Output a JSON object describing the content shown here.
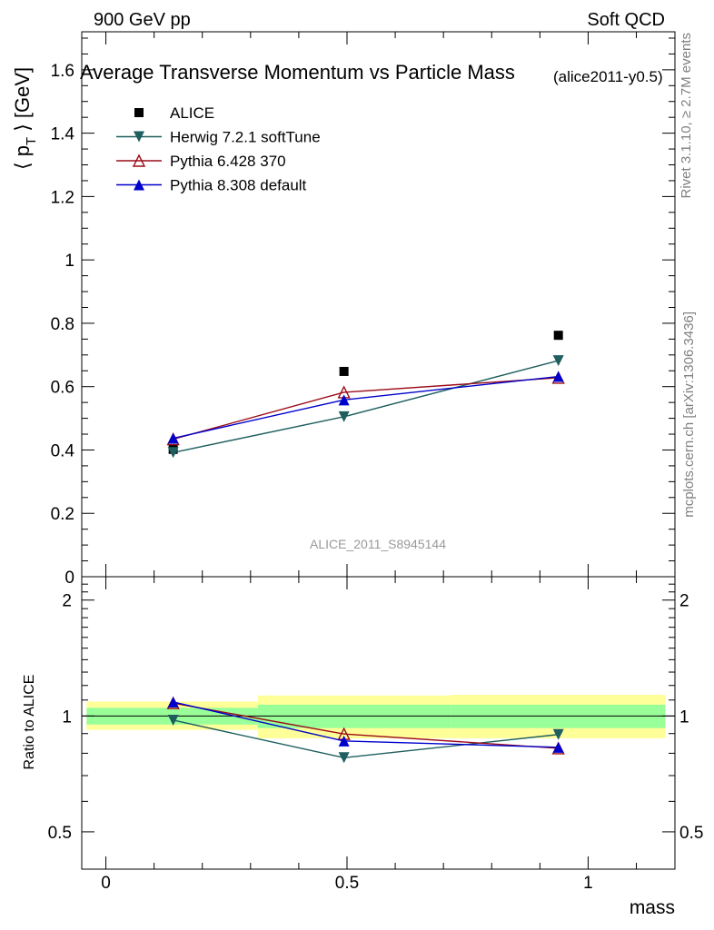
{
  "header": {
    "left": "900 GeV pp",
    "right": "Soft QCD"
  },
  "side_labels": {
    "rivet": "Rivet 3.1.10, ≥ 2.7M events",
    "mcplots": "mcplots.cern.ch [arXiv:1306.3436]"
  },
  "colors": {
    "data": "#000000",
    "herwig": "#1e5e5e",
    "pythia6": "#9b0d1a",
    "pythia8": "#0000cc",
    "band_inner": "#99ff99",
    "band_outer": "#ffff99",
    "watermark": "#999999"
  },
  "chart_data": [
    {
      "type": "line",
      "panel": "main",
      "title": "Average Transverse Momentum vs Particle Mass",
      "title_tag": "(alice2011-y0.5)",
      "watermark": "ALICE_2011_S8945144",
      "xlabel": "mass",
      "ylabel_parts": {
        "open": "⟨ p",
        "sub": "T",
        "close": " ⟩ [GeV]"
      },
      "xlim": [
        -0.05,
        1.18
      ],
      "ylim": [
        0,
        1.72
      ],
      "yticks": [
        0,
        0.2,
        0.4,
        0.6,
        0.8,
        1,
        1.2,
        1.4,
        1.6
      ],
      "ytick_labels": [
        "0",
        "0.2",
        "0.4",
        "0.6",
        "0.8",
        "1",
        "1.2",
        "1.4",
        "1.6"
      ],
      "x": [
        0.1396,
        0.4937,
        0.9383
      ],
      "series": [
        {
          "name": "ALICE",
          "key": "data",
          "marker": "square",
          "line": false,
          "values": [
            0.402,
            0.648,
            0.762
          ]
        },
        {
          "name": "Herwig 7.2.1 softTune",
          "key": "herwig",
          "marker": "tri-down",
          "line": true,
          "values": [
            0.392,
            0.505,
            0.682
          ]
        },
        {
          "name": "Pythia 6.428 370",
          "key": "pythia6",
          "marker": "tri-up-open",
          "line": true,
          "values": [
            0.434,
            0.582,
            0.628
          ]
        },
        {
          "name": "Pythia 8.308 default",
          "key": "pythia8",
          "marker": "tri-up",
          "line": true,
          "values": [
            0.437,
            0.558,
            0.632
          ]
        }
      ],
      "legend_position": "top-left"
    },
    {
      "type": "line",
      "panel": "ratio",
      "ylabel": "Ratio to ALICE",
      "xlabel": "mass",
      "xlim": [
        -0.05,
        1.18
      ],
      "ylim": [
        0.4,
        2.3
      ],
      "yscale": "log",
      "yticks": [
        0.5,
        1,
        2
      ],
      "ytick_labels": [
        "0.5",
        "1",
        "2"
      ],
      "xticks": [
        0,
        0.5,
        1
      ],
      "xtick_labels": [
        "0",
        "0.5",
        "1"
      ],
      "x": [
        0.1396,
        0.4937,
        0.9383
      ],
      "bands": [
        {
          "x_from": -0.04,
          "x_to": 0.315,
          "inner": [
            0.95,
            1.05
          ],
          "outer": [
            0.92,
            1.09
          ]
        },
        {
          "x_from": 0.315,
          "x_to": 0.715,
          "inner": [
            0.93,
            1.07
          ],
          "outer": [
            0.875,
            1.13
          ]
        },
        {
          "x_from": 0.715,
          "x_to": 1.16,
          "inner": [
            0.93,
            1.07
          ],
          "outer": [
            0.875,
            1.135
          ]
        }
      ],
      "series": [
        {
          "name": "Herwig 7.2.1 softTune",
          "key": "herwig",
          "marker": "tri-down",
          "values": [
            0.975,
            0.779,
            0.895
          ]
        },
        {
          "name": "Pythia 6.428 370",
          "key": "pythia6",
          "marker": "tri-up-open",
          "values": [
            1.08,
            0.898,
            0.824
          ]
        },
        {
          "name": "Pythia 8.308 default",
          "key": "pythia8",
          "marker": "tri-up",
          "values": [
            1.087,
            0.861,
            0.829
          ]
        }
      ]
    }
  ]
}
